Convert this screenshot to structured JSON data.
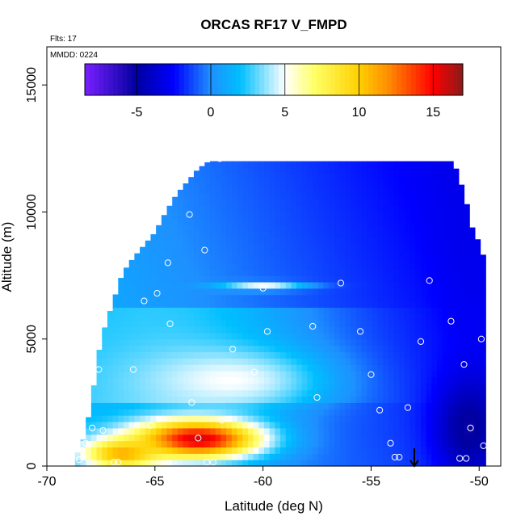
{
  "chart_data": {
    "type": "heatmap",
    "title": "ORCAS RF17 V_FMPD",
    "subtitle_flights": "Flts: 17",
    "subtitle_date": "MMDD: 0224",
    "xlabel": "Latitude (deg N)",
    "ylabel": "Altitude (m)",
    "xlim": [
      -70,
      -49
    ],
    "ylim": [
      0,
      16500
    ],
    "xticks": [
      "-70",
      "-65",
      "-60",
      "-55",
      "-50"
    ],
    "xtick_values": [
      -70,
      -65,
      -60,
      -55,
      -50
    ],
    "yticks": [
      "0",
      "5000",
      "10000",
      "15000"
    ],
    "ytick_values": [
      0,
      5000,
      10000,
      15000
    ],
    "colorbar": {
      "range": [
        -8.5,
        17
      ],
      "ticks": [
        "-5",
        "0",
        "5",
        "10",
        "15"
      ],
      "tick_values": [
        -5,
        0,
        5,
        10,
        15
      ],
      "colors": [
        "#7a1fff",
        "#0000a0",
        "#0000ff",
        "#1e90ff",
        "#00bfff",
        "#ffffff",
        "#ffff66",
        "#ffd000",
        "#ff8c00",
        "#ff0000",
        "#8b1a1a"
      ]
    },
    "grid_cell": {
      "lat_step": 0.25,
      "alt_step": 250
    },
    "coverage": [
      {
        "lat": -68.7,
        "alt_top": 350
      },
      {
        "lat": -68.4,
        "alt_top": 800
      },
      {
        "lat": -68.1,
        "alt_top": 1800
      },
      {
        "lat": -67.8,
        "alt_top": 3300
      },
      {
        "lat": -67.5,
        "alt_top": 5000
      },
      {
        "lat": -67.0,
        "alt_top": 6300
      },
      {
        "lat": -66.5,
        "alt_top": 7600
      },
      {
        "lat": -66.0,
        "alt_top": 8200
      },
      {
        "lat": -65.5,
        "alt_top": 8700
      },
      {
        "lat": -65.0,
        "alt_top": 9200
      },
      {
        "lat": -64.5,
        "alt_top": 10000
      },
      {
        "lat": -64.0,
        "alt_top": 10700
      },
      {
        "lat": -63.5,
        "alt_top": 11200
      },
      {
        "lat": -63.0,
        "alt_top": 11700
      },
      {
        "lat": -62.5,
        "alt_top": 12000
      },
      {
        "lat": -51.2,
        "alt_top": 12000
      },
      {
        "lat": -50.9,
        "alt_top": 11300
      },
      {
        "lat": -50.6,
        "alt_top": 10400
      },
      {
        "lat": -50.3,
        "alt_top": 9300
      },
      {
        "lat": -50.0,
        "alt_top": 8800
      },
      {
        "lat": -49.6,
        "alt_top": 7700
      }
    ],
    "field_features": [
      {
        "kind": "peak",
        "lat": -63.0,
        "alt": 1100,
        "value": 16,
        "sigma_lat": 3.0,
        "sigma_alt": 800
      },
      {
        "kind": "peak",
        "lat": -66.5,
        "alt": 500,
        "value": 11,
        "sigma_lat": 1.8,
        "sigma_alt": 600
      },
      {
        "kind": "peak",
        "lat": -61.5,
        "alt": 3400,
        "value": 5,
        "sigma_lat": 4.0,
        "sigma_alt": 1200
      },
      {
        "kind": "peak",
        "lat": -60.0,
        "alt": 7100,
        "value": 5,
        "sigma_lat": 2.0,
        "sigma_alt": 150
      },
      {
        "kind": "trough",
        "lat": -50.5,
        "alt": 1500,
        "value": -6,
        "sigma_lat": 1.5,
        "sigma_alt": 2000
      },
      {
        "kind": "trough",
        "lat": -50.5,
        "alt": 9000,
        "value": -3,
        "sigma_lat": 1.5,
        "sigma_alt": 3500
      }
    ],
    "markers": [
      {
        "lat": -62.0,
        "alt": 12100
      },
      {
        "lat": -58.9,
        "alt": 12200
      },
      {
        "lat": -55.9,
        "alt": 12200
      },
      {
        "lat": -51.0,
        "alt": 12000
      },
      {
        "lat": -63.4,
        "alt": 9900
      },
      {
        "lat": -62.7,
        "alt": 8500
      },
      {
        "lat": -64.4,
        "alt": 8000
      },
      {
        "lat": -66.7,
        "alt": 7600
      },
      {
        "lat": -60.0,
        "alt": 7000
      },
      {
        "lat": -56.4,
        "alt": 7200
      },
      {
        "lat": -52.3,
        "alt": 7300
      },
      {
        "lat": -64.9,
        "alt": 6800
      },
      {
        "lat": -65.5,
        "alt": 6500
      },
      {
        "lat": -59.8,
        "alt": 5300
      },
      {
        "lat": -57.7,
        "alt": 5500
      },
      {
        "lat": -55.5,
        "alt": 5300
      },
      {
        "lat": -51.3,
        "alt": 5700
      },
      {
        "lat": -49.9,
        "alt": 5000
      },
      {
        "lat": -52.7,
        "alt": 4900
      },
      {
        "lat": -64.3,
        "alt": 5600
      },
      {
        "lat": -61.4,
        "alt": 4600
      },
      {
        "lat": -67.6,
        "alt": 3800
      },
      {
        "lat": -66.0,
        "alt": 3800
      },
      {
        "lat": -60.4,
        "alt": 3700
      },
      {
        "lat": -55.0,
        "alt": 3600
      },
      {
        "lat": -50.7,
        "alt": 4000
      },
      {
        "lat": -57.5,
        "alt": 2700
      },
      {
        "lat": -63.3,
        "alt": 2500
      },
      {
        "lat": -61.9,
        "alt": 1800
      },
      {
        "lat": -54.6,
        "alt": 2200
      },
      {
        "lat": -53.3,
        "alt": 2300
      },
      {
        "lat": -65.2,
        "alt": 1600
      },
      {
        "lat": -67.9,
        "alt": 1500
      },
      {
        "lat": -67.4,
        "alt": 1400
      },
      {
        "lat": -63.0,
        "alt": 1100
      },
      {
        "lat": -68.2,
        "alt": 900
      },
      {
        "lat": -54.1,
        "alt": 900
      },
      {
        "lat": -50.4,
        "alt": 1500
      },
      {
        "lat": -62.6,
        "alt": 150
      },
      {
        "lat": -62.3,
        "alt": 150
      },
      {
        "lat": -66.9,
        "alt": 150
      },
      {
        "lat": -66.7,
        "alt": 150
      },
      {
        "lat": -53.9,
        "alt": 350
      },
      {
        "lat": -53.7,
        "alt": 350
      },
      {
        "lat": -68.5,
        "alt": 250
      },
      {
        "lat": -50.9,
        "alt": 300
      },
      {
        "lat": -50.6,
        "alt": 300
      },
      {
        "lat": -49.8,
        "alt": 800
      }
    ],
    "arrow": {
      "lat": -53.0,
      "alt_from": 700,
      "alt_to": 0
    }
  }
}
